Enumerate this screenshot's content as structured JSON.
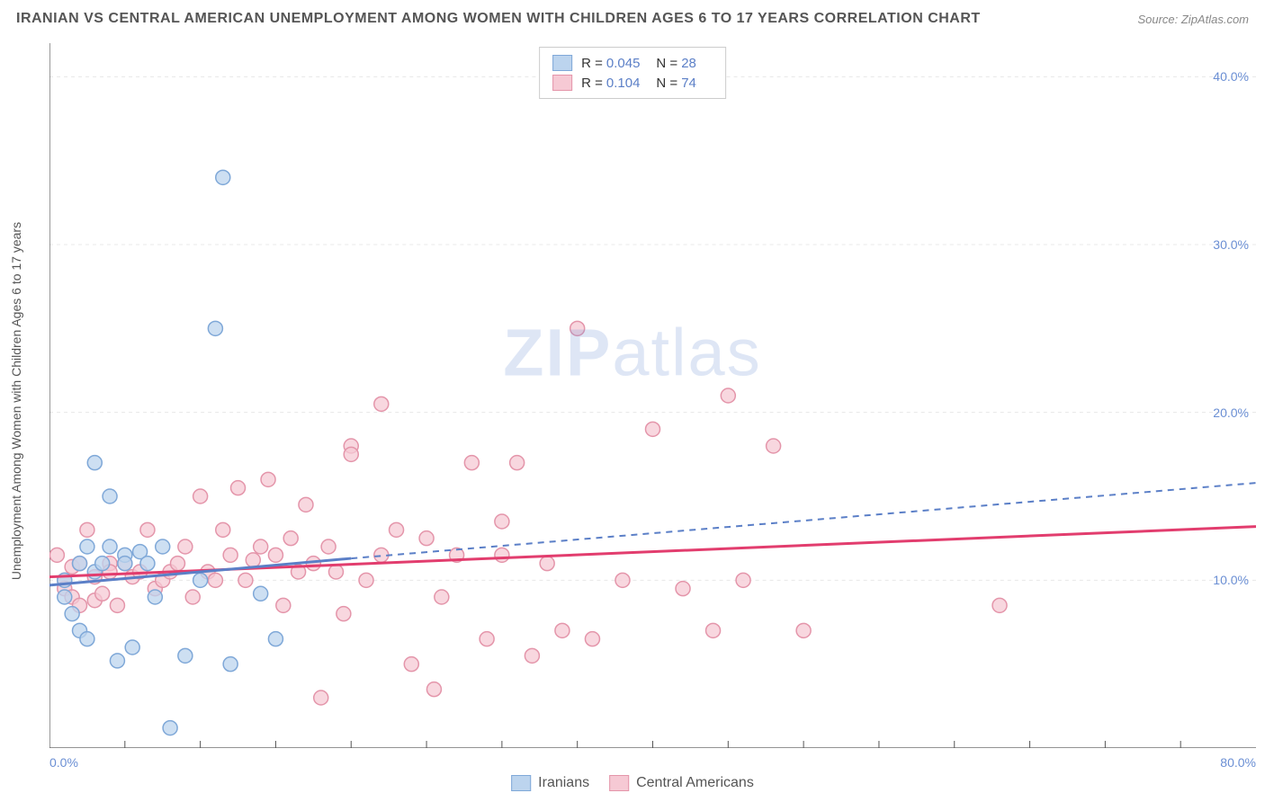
{
  "title": "IRANIAN VS CENTRAL AMERICAN UNEMPLOYMENT AMONG WOMEN WITH CHILDREN AGES 6 TO 17 YEARS CORRELATION CHART",
  "source": "Source: ZipAtlas.com",
  "y_axis_label": "Unemployment Among Women with Children Ages 6 to 17 years",
  "watermark_bold": "ZIP",
  "watermark_light": "atlas",
  "chart": {
    "type": "scatter",
    "xlim": [
      0,
      80
    ],
    "ylim": [
      0,
      42
    ],
    "x_ticks": [
      0,
      80
    ],
    "x_tick_labels": [
      "0.0%",
      "80.0%"
    ],
    "y_ticks": [
      10,
      20,
      30,
      40
    ],
    "y_tick_labels": [
      "10.0%",
      "20.0%",
      "30.0%",
      "40.0%"
    ],
    "x_minor_ticks": [
      5,
      10,
      15,
      20,
      25,
      30,
      35,
      40,
      45,
      50,
      55,
      60,
      65,
      70,
      75
    ],
    "grid_color": "#e8e8e8",
    "axis_color": "#555555",
    "background_color": "#ffffff",
    "marker_radius": 8,
    "marker_stroke_width": 1.5,
    "series": {
      "iranians": {
        "label": "Iranians",
        "fill": "#bcd4ee",
        "stroke": "#7fa8d8",
        "R": "0.045",
        "N": "28",
        "points": [
          [
            1,
            10
          ],
          [
            1,
            9
          ],
          [
            1.5,
            8
          ],
          [
            2,
            11
          ],
          [
            2,
            7
          ],
          [
            2.5,
            6.5
          ],
          [
            2.5,
            12
          ],
          [
            3,
            10.5
          ],
          [
            3,
            17
          ],
          [
            3.5,
            11
          ],
          [
            4,
            15
          ],
          [
            4,
            12
          ],
          [
            4.5,
            5.2
          ],
          [
            5,
            11.5
          ],
          [
            5,
            11
          ],
          [
            5.5,
            6
          ],
          [
            6,
            11.7
          ],
          [
            6.5,
            11
          ],
          [
            7,
            9
          ],
          [
            7.5,
            12
          ],
          [
            8,
            1.2
          ],
          [
            9,
            5.5
          ],
          [
            10,
            10
          ],
          [
            11,
            25
          ],
          [
            11.5,
            34
          ],
          [
            12,
            5
          ],
          [
            14,
            9.2
          ],
          [
            15,
            6.5
          ]
        ],
        "trend": {
          "x1": 0,
          "y1": 9.7,
          "x2": 20,
          "y2": 11.3,
          "dash_from_x": 20,
          "dash_to_x": 80,
          "dash_to_y": 15.8,
          "color": "#5b7fc7",
          "width": 3
        }
      },
      "central": {
        "label": "Central Americans",
        "fill": "#f6c9d4",
        "stroke": "#e495aa",
        "R": "0.104",
        "N": "74",
        "points": [
          [
            0.5,
            11.5
          ],
          [
            1,
            10
          ],
          [
            1,
            9.5
          ],
          [
            1.5,
            9
          ],
          [
            1.5,
            10.8
          ],
          [
            2,
            11
          ],
          [
            2,
            8.5
          ],
          [
            2.5,
            13
          ],
          [
            3,
            10.2
          ],
          [
            3,
            8.8
          ],
          [
            3.5,
            9.2
          ],
          [
            4,
            11
          ],
          [
            4,
            10.5
          ],
          [
            4.5,
            8.5
          ],
          [
            5,
            11
          ],
          [
            5.5,
            10.2
          ],
          [
            6,
            10.5
          ],
          [
            6.5,
            13
          ],
          [
            7,
            9.5
          ],
          [
            7.5,
            10
          ],
          [
            8,
            10.5
          ],
          [
            8.5,
            11
          ],
          [
            9,
            12
          ],
          [
            9.5,
            9
          ],
          [
            10,
            15
          ],
          [
            10.5,
            10.5
          ],
          [
            11,
            10
          ],
          [
            11.5,
            13
          ],
          [
            12,
            11.5
          ],
          [
            12.5,
            15.5
          ],
          [
            13,
            10
          ],
          [
            13.5,
            11.2
          ],
          [
            14,
            12
          ],
          [
            14.5,
            16
          ],
          [
            15,
            11.5
          ],
          [
            15.5,
            8.5
          ],
          [
            16,
            12.5
          ],
          [
            16.5,
            10.5
          ],
          [
            17,
            14.5
          ],
          [
            17.5,
            11
          ],
          [
            18,
            3
          ],
          [
            18.5,
            12
          ],
          [
            19,
            10.5
          ],
          [
            19.5,
            8
          ],
          [
            20,
            18
          ],
          [
            20,
            17.5
          ],
          [
            21,
            10
          ],
          [
            22,
            11.5
          ],
          [
            22,
            20.5
          ],
          [
            23,
            13
          ],
          [
            24,
            5
          ],
          [
            25,
            12.5
          ],
          [
            25.5,
            3.5
          ],
          [
            26,
            9
          ],
          [
            27,
            11.5
          ],
          [
            28,
            17
          ],
          [
            29,
            6.5
          ],
          [
            30,
            11.5
          ],
          [
            30,
            13.5
          ],
          [
            31,
            17
          ],
          [
            32,
            5.5
          ],
          [
            33,
            11
          ],
          [
            34,
            7
          ],
          [
            35,
            25
          ],
          [
            36,
            6.5
          ],
          [
            38,
            10
          ],
          [
            40,
            19
          ],
          [
            42,
            9.5
          ],
          [
            44,
            7
          ],
          [
            45,
            21
          ],
          [
            46,
            10
          ],
          [
            48,
            18
          ],
          [
            50,
            7
          ],
          [
            63,
            8.5
          ]
        ],
        "trend": {
          "x1": 0,
          "y1": 10.2,
          "x2": 80,
          "y2": 13.2,
          "color": "#e23d6e",
          "width": 3
        }
      }
    }
  },
  "legend_top": {
    "r_label": "R =",
    "n_label": "N ="
  }
}
